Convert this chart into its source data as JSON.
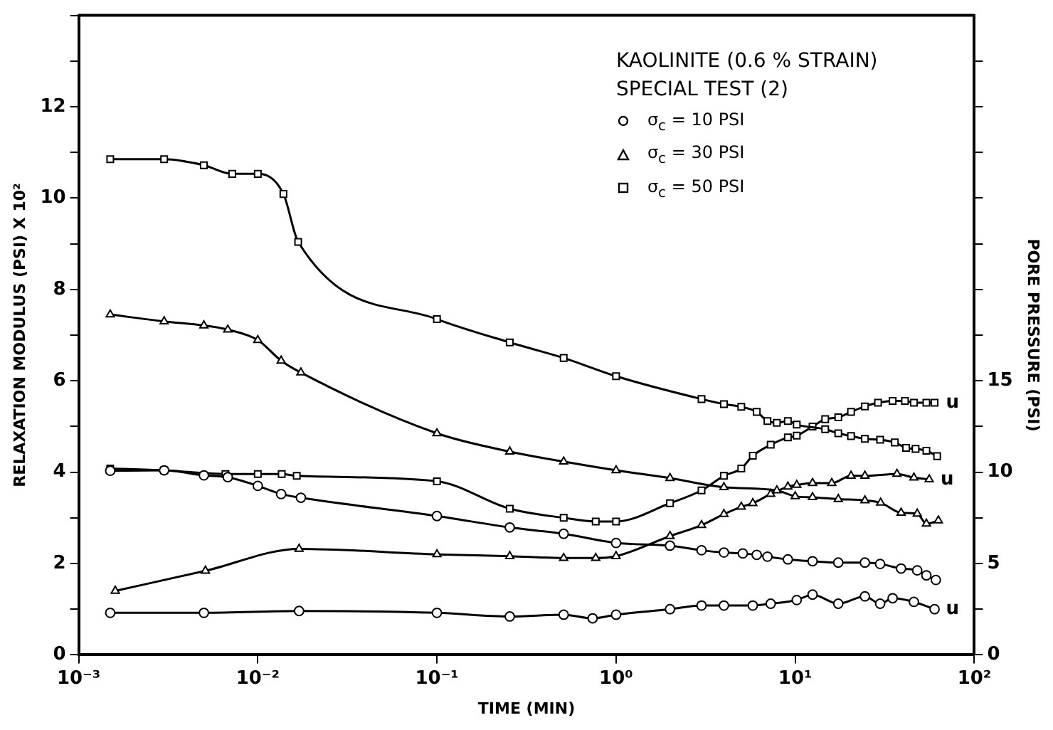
{
  "chart_data": {
    "type": "line",
    "title": "KAOLINITE (0.6 % STRAIN)",
    "subtitle": "SPECIAL TEST (2)",
    "xlabel": "TIME (MIN)",
    "ylabel": "RELAXATION MODULUS (PSI) X 10²",
    "y2label": "PORE PRESSURE (PSI)",
    "log": "x",
    "grid": false,
    "legend": "top right",
    "line_style": "solid",
    "xlim": [
      0.001,
      100
    ],
    "xticks": [
      {
        "value": 0.001,
        "label": "10⁻³"
      },
      {
        "value": 0.01,
        "label": "10⁻²"
      },
      {
        "value": 0.1,
        "label": "10⁻¹"
      },
      {
        "value": 1,
        "label": "10⁰"
      },
      {
        "value": 10,
        "label": "10¹"
      },
      {
        "value": 100,
        "label": "10²"
      }
    ],
    "ylim": [
      0,
      14
    ],
    "yticks": [
      0,
      {
        "value": 1,
        "label": null
      },
      2,
      {
        "value": 3,
        "label": null
      },
      4,
      {
        "value": 5,
        "label": null
      },
      6,
      {
        "value": 7,
        "label": null
      },
      8,
      {
        "value": 9,
        "label": null
      },
      10,
      {
        "value": 11,
        "label": null
      },
      12,
      {
        "value": 13,
        "label": null
      },
      {
        "value": 14,
        "label": null
      }
    ],
    "y2lim": [
      0,
      35
    ],
    "y2ticks": [
      0,
      {
        "value": 2.5,
        "label": null
      },
      5,
      {
        "value": 7.5,
        "label": null
      },
      10,
      {
        "value": 12.5,
        "label": null
      },
      15,
      {
        "value": 17.5,
        "label": null
      },
      {
        "value": 20,
        "label": null
      },
      {
        "value": 22.5,
        "label": null
      },
      {
        "value": 25,
        "label": null
      },
      {
        "value": 27.5,
        "label": null
      },
      {
        "value": 30,
        "label": null
      },
      {
        "value": 32.5,
        "label": null
      }
    ],
    "series": [
      {
        "name": "σ$_{c}$ = 10 PSI",
        "color": "#000000",
        "marker": "circle",
        "x": [
          0.0015,
          0.003,
          0.005,
          0.0068,
          0.01,
          0.0135,
          0.0174,
          0.1,
          0.255,
          0.51,
          1.0,
          2.0,
          3.0,
          4.0,
          5.1,
          6.1,
          7.0,
          9.1,
          12.5,
          17.4,
          24.5,
          29.8,
          39,
          48,
          54,
          61
        ],
        "values": [
          4.03,
          4.04,
          3.93,
          3.89,
          3.7,
          3.52,
          3.44,
          3.04,
          2.79,
          2.65,
          2.45,
          2.39,
          2.29,
          2.24,
          2.22,
          2.19,
          2.15,
          2.09,
          2.05,
          2.02,
          2.02,
          1.99,
          1.89,
          1.85,
          1.74,
          1.64
        ]
      },
      {
        "name": "σ$_{c}$ = 30 PSI",
        "color": "#000000",
        "marker": "triangle",
        "x": [
          0.0015,
          0.003,
          0.005,
          0.0068,
          0.01,
          0.0135,
          0.0174,
          0.1,
          0.255,
          0.51,
          1.0,
          2.0,
          4.0,
          7.9,
          10,
          12.5,
          17.4,
          24.5,
          30,
          39,
          48,
          54,
          63
        ],
        "values": [
          7.45,
          7.3,
          7.21,
          7.12,
          6.89,
          6.44,
          6.18,
          4.85,
          4.45,
          4.23,
          4.04,
          3.87,
          3.67,
          3.6,
          3.47,
          3.45,
          3.41,
          3.38,
          3.33,
          3.11,
          3.09,
          2.87,
          2.94
        ]
      },
      {
        "name": "σ$_{c}$ = 50 PSI",
        "color": "#000000",
        "marker": "square",
        "x": [
          0.0015,
          0.003,
          0.005,
          0.0072,
          0.01,
          0.0139,
          0.0168,
          0.1,
          0.255,
          0.51,
          1.0,
          3.0,
          4.0,
          5.0,
          6.1,
          7.0,
          7.9,
          9.1,
          10.2,
          14.7,
          17.4,
          20.5,
          24.5,
          29.8,
          36,
          41.6,
          47,
          54,
          62
        ],
        "values": [
          10.85,
          10.85,
          10.72,
          10.53,
          10.53,
          10.09,
          9.04,
          7.35,
          6.84,
          6.5,
          6.1,
          5.6,
          5.49,
          5.43,
          5.32,
          5.12,
          5.08,
          5.12,
          5.04,
          4.94,
          4.85,
          4.79,
          4.73,
          4.71,
          4.65,
          4.53,
          4.51,
          4.47,
          4.35
        ]
      },
      {
        "name": "u",
        "color": "#000000",
        "marker": "circle",
        "axis": "y2",
        "x": [
          0.0015,
          0.005,
          0.017,
          0.1,
          0.255,
          0.51,
          0.74,
          1.0,
          2.0,
          3.0,
          4.0,
          5.8,
          7.3,
          10.2,
          12.5,
          17.4,
          24.5,
          29.8,
          35,
          46,
          60
        ],
        "values": [
          2.3,
          2.3,
          2.4,
          2.3,
          2.1,
          2.2,
          2.0,
          2.2,
          2.5,
          2.7,
          2.7,
          2.7,
          2.8,
          3.0,
          3.3,
          2.8,
          3.2,
          2.8,
          3.1,
          2.9,
          2.5
        ]
      },
      {
        "name": "u",
        "color": "#000000",
        "marker": "triangle",
        "axis": "y2",
        "x": [
          0.0016,
          0.0051,
          0.017,
          0.1,
          0.255,
          0.51,
          0.77,
          1.0,
          2.0,
          3.0,
          4.0,
          5.0,
          5.8,
          7.3,
          9.1,
          10.2,
          12.5,
          16,
          20.5,
          24.5,
          37,
          46,
          56
        ],
        "values": [
          3.5,
          4.6,
          5.8,
          5.5,
          5.4,
          5.3,
          5.3,
          5.4,
          6.5,
          7.1,
          7.7,
          8.1,
          8.3,
          8.8,
          9.2,
          9.3,
          9.4,
          9.4,
          9.8,
          9.8,
          9.9,
          9.7,
          9.6
        ]
      },
      {
        "name": "u",
        "color": "#000000",
        "marker": "square",
        "axis": "y2",
        "x": [
          0.0015,
          0.003,
          0.0066,
          0.01,
          0.0136,
          0.0165,
          0.1,
          0.255,
          0.51,
          0.77,
          1.0,
          2.0,
          3.0,
          4.0,
          5.0,
          5.8,
          7.3,
          9.1,
          10.2,
          12.5,
          14.7,
          17.4,
          20.5,
          24.5,
          29,
          35,
          41,
          46,
          54,
          60
        ],
        "values": [
          10.2,
          10.1,
          9.9,
          9.9,
          9.9,
          9.8,
          9.5,
          8.0,
          7.5,
          7.3,
          7.3,
          8.3,
          9.0,
          9.8,
          10.2,
          10.9,
          11.5,
          11.9,
          12.0,
          12.5,
          12.9,
          13.0,
          13.3,
          13.6,
          13.8,
          13.9,
          13.9,
          13.8,
          13.8,
          13.8
        ]
      }
    ]
  }
}
